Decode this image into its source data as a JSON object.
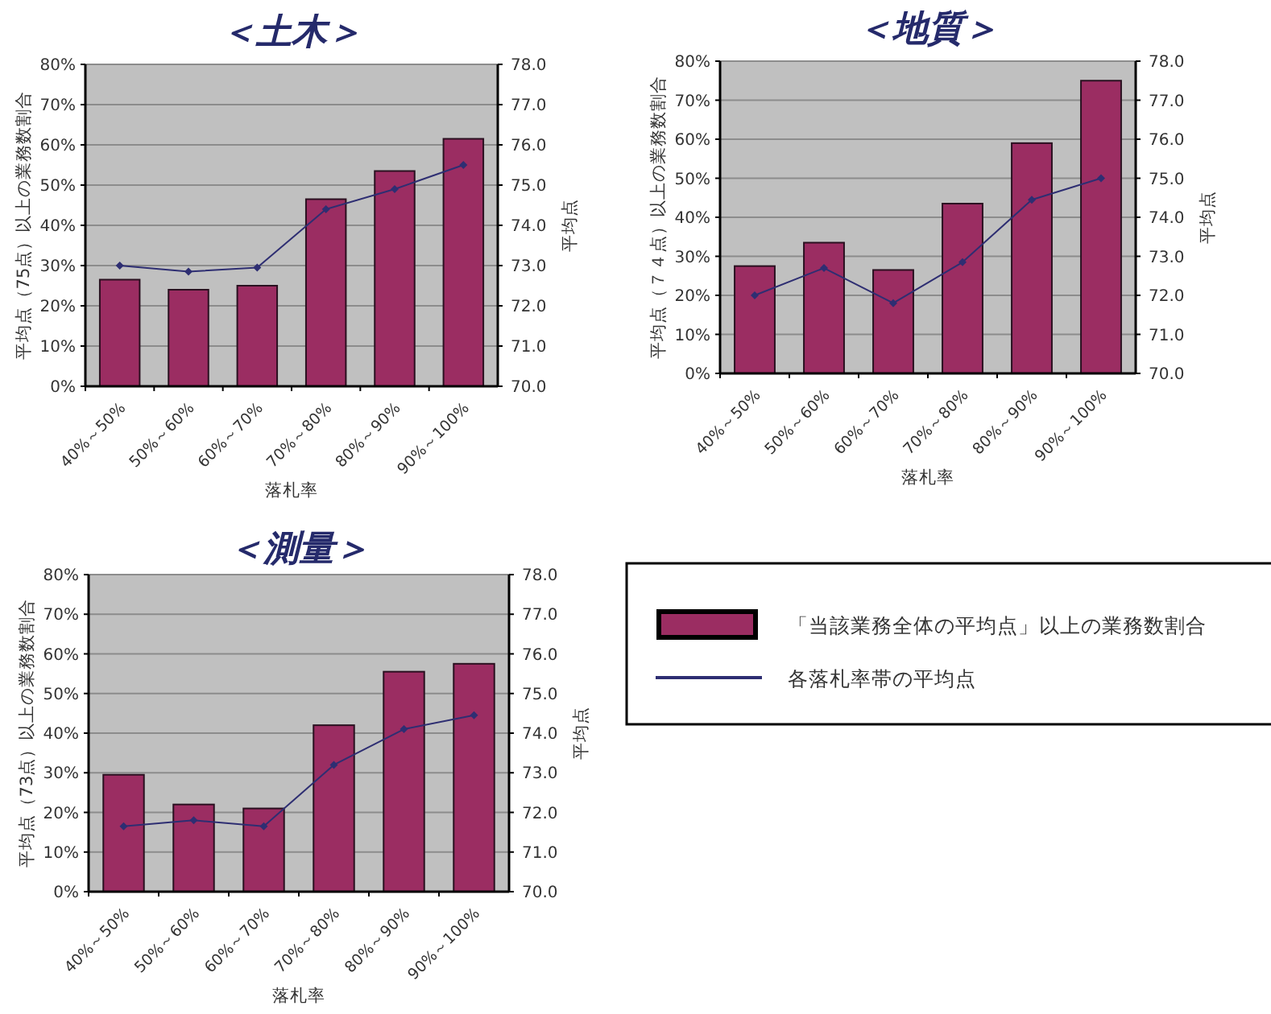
{
  "chart_data": [
    {
      "type": "bar",
      "title": "＜土木＞",
      "xlabel": "落札率",
      "ylabel": "平均点（75点）以上の業務数割合",
      "y2label": "平均点",
      "categories": [
        "40%～50%",
        "50%～60%",
        "60%～70%",
        "70%～80%",
        "80%～90%",
        "90%～100%"
      ],
      "series": [
        {
          "color": "#9b2d62",
          "values": [
            26.5,
            24,
            25,
            46.5,
            53.5,
            61.5
          ]
        },
        {
          "type": "line",
          "axis": "y2",
          "color": "#2e2e72",
          "marker": "diamond",
          "values": [
            73.0,
            72.85,
            72.95,
            74.4,
            74.9,
            75.5
          ]
        }
      ],
      "ylim": [
        0,
        80
      ],
      "yticks": [
        {
          "value": 0,
          "label": "0%"
        },
        {
          "value": 10,
          "label": "10%"
        },
        {
          "value": 20,
          "label": "20%"
        },
        {
          "value": 30,
          "label": "30%"
        },
        {
          "value": 40,
          "label": "40%"
        },
        {
          "value": 50,
          "label": "50%"
        },
        {
          "value": 60,
          "label": "60%"
        },
        {
          "value": 70,
          "label": "70%"
        },
        {
          "value": 80,
          "label": "80%"
        }
      ],
      "y2lim": [
        70,
        78
      ],
      "y2ticks": [
        {
          "value": 70,
          "label": "70.0"
        },
        {
          "value": 71,
          "label": "71.0"
        },
        {
          "value": 72,
          "label": "72.0"
        },
        {
          "value": 73,
          "label": "73.0"
        },
        {
          "value": 74,
          "label": "74.0"
        },
        {
          "value": 75,
          "label": "75.0"
        },
        {
          "value": 76,
          "label": "76.0"
        },
        {
          "value": 77,
          "label": "77.0"
        },
        {
          "value": 78,
          "label": "78.0"
        }
      ],
      "grid": "y"
    },
    {
      "type": "bar",
      "title": "＜地質＞",
      "xlabel": "落札率",
      "ylabel": "平均点（７４点）以上の業務数割合",
      "y2label": "平均点",
      "categories": [
        "40%～50%",
        "50%～60%",
        "60%～70%",
        "70%～80%",
        "80%～90%",
        "90%～100%"
      ],
      "series": [
        {
          "color": "#9b2d62",
          "values": [
            27.5,
            33.5,
            26.5,
            43.5,
            59,
            75
          ]
        },
        {
          "type": "line",
          "axis": "y2",
          "color": "#2e2e72",
          "marker": "diamond",
          "values": [
            72.0,
            72.7,
            71.8,
            72.85,
            74.45,
            75.0
          ]
        }
      ],
      "ylim": [
        0,
        80
      ],
      "yticks": [
        {
          "value": 0,
          "label": "0%"
        },
        {
          "value": 10,
          "label": "10%"
        },
        {
          "value": 20,
          "label": "20%"
        },
        {
          "value": 30,
          "label": "30%"
        },
        {
          "value": 40,
          "label": "40%"
        },
        {
          "value": 50,
          "label": "50%"
        },
        {
          "value": 60,
          "label": "60%"
        },
        {
          "value": 70,
          "label": "70%"
        },
        {
          "value": 80,
          "label": "80%"
        }
      ],
      "y2lim": [
        70,
        78
      ],
      "y2ticks": [
        {
          "value": 70,
          "label": "70.0"
        },
        {
          "value": 71,
          "label": "71.0"
        },
        {
          "value": 72,
          "label": "72.0"
        },
        {
          "value": 73,
          "label": "73.0"
        },
        {
          "value": 74,
          "label": "74.0"
        },
        {
          "value": 75,
          "label": "75.0"
        },
        {
          "value": 76,
          "label": "76.0"
        },
        {
          "value": 77,
          "label": "77.0"
        },
        {
          "value": 78,
          "label": "78.0"
        }
      ],
      "grid": "y"
    },
    {
      "type": "bar",
      "title": "＜測量＞",
      "xlabel": "落札率",
      "ylabel": "平均点（73点）以上の業務数割合",
      "y2label": "平均点",
      "categories": [
        "40%～50%",
        "50%～60%",
        "60%～70%",
        "70%～80%",
        "80%～90%",
        "90%～100%"
      ],
      "series": [
        {
          "name": "「当該業務全体の平均点」以上の業務数割合",
          "color": "#9b2d62",
          "values": [
            29.5,
            22,
            21,
            42,
            55.5,
            57.5
          ]
        },
        {
          "type": "line",
          "axis": "y2",
          "name": "各落札率帯の平均点",
          "color": "#2e2e72",
          "marker": "diamond",
          "values": [
            71.65,
            71.8,
            71.65,
            73.2,
            74.1,
            74.45
          ]
        }
      ],
      "ylim": [
        0,
        80
      ],
      "yticks": [
        {
          "value": 0,
          "label": "0%"
        },
        {
          "value": 10,
          "label": "10%"
        },
        {
          "value": 20,
          "label": "20%"
        },
        {
          "value": 30,
          "label": "30%"
        },
        {
          "value": 40,
          "label": "40%"
        },
        {
          "value": 50,
          "label": "50%"
        },
        {
          "value": 60,
          "label": "60%"
        },
        {
          "value": 70,
          "label": "70%"
        },
        {
          "value": 80,
          "label": "80%"
        }
      ],
      "y2lim": [
        70,
        78
      ],
      "y2ticks": [
        {
          "value": 70,
          "label": "70.0"
        },
        {
          "value": 71,
          "label": "71.0"
        },
        {
          "value": 72,
          "label": "72.0"
        },
        {
          "value": 73,
          "label": "73.0"
        },
        {
          "value": 74,
          "label": "74.0"
        },
        {
          "value": 75,
          "label": "75.0"
        },
        {
          "value": 76,
          "label": "76.0"
        },
        {
          "value": 77,
          "label": "77.0"
        },
        {
          "value": 78,
          "label": "78.0"
        }
      ],
      "grid": "y",
      "legend": "right"
    }
  ]
}
